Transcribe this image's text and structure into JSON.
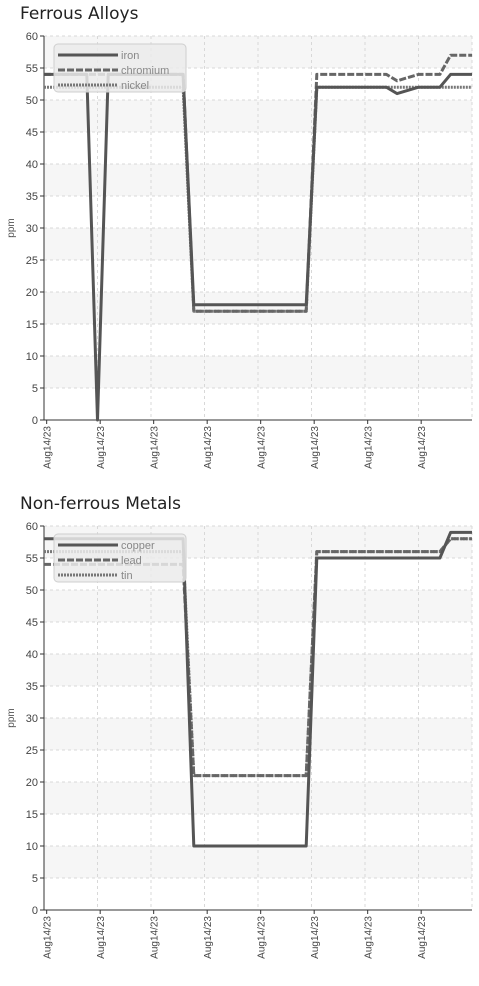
{
  "chart_data": [
    {
      "type": "line",
      "title": "Ferrous Alloys",
      "ylabel": "ppm",
      "ylim": [
        0,
        60
      ],
      "yticks": [
        0,
        5,
        10,
        15,
        20,
        25,
        30,
        35,
        40,
        45,
        50,
        55,
        60
      ],
      "xticks": [
        "Aug14/23",
        "Aug14/23",
        "Aug14/23",
        "Aug14/23",
        "Aug14/23",
        "Aug14/23",
        "Aug14/23",
        "Aug14/23"
      ],
      "x_range": [
        0,
        8
      ],
      "grid": true,
      "legend": "top-left",
      "series": [
        {
          "name": "iron",
          "style": "solid",
          "color": "#555555",
          "x": [
            0,
            0.8,
            1.0,
            1.2,
            2.6,
            2.8,
            4.9,
            5.1,
            6.0,
            6.4,
            6.6,
            7.0,
            7.4,
            7.6,
            8.0
          ],
          "y": [
            54,
            54,
            0,
            54,
            54,
            18,
            18,
            52,
            52,
            52,
            51,
            52,
            52,
            54,
            54
          ]
        },
        {
          "name": "chromium",
          "style": "dashed",
          "color": "#666666",
          "x": [
            0,
            2.6,
            2.8,
            4.9,
            5.1,
            6.0,
            6.4,
            6.6,
            7.0,
            7.4,
            7.6,
            8.0
          ],
          "y": [
            54,
            54,
            17,
            17,
            54,
            54,
            54,
            53,
            54,
            54,
            57,
            57
          ]
        },
        {
          "name": "nickel",
          "style": "dotted",
          "color": "#777777",
          "x": [
            0,
            2.6,
            2.8,
            4.9,
            5.1,
            8.0
          ],
          "y": [
            52,
            52,
            17,
            17,
            52,
            52
          ]
        }
      ]
    },
    {
      "type": "line",
      "title": "Non-ferrous Metals",
      "ylabel": "ppm",
      "ylim": [
        0,
        60
      ],
      "yticks": [
        0,
        5,
        10,
        15,
        20,
        25,
        30,
        35,
        40,
        45,
        50,
        55,
        60
      ],
      "xticks": [
        "Aug14/23",
        "Aug14/23",
        "Aug14/23",
        "Aug14/23",
        "Aug14/23",
        "Aug14/23",
        "Aug14/23",
        "Aug14/23"
      ],
      "x_range": [
        0,
        8
      ],
      "grid": true,
      "legend": "top-left",
      "series": [
        {
          "name": "copper",
          "style": "solid",
          "color": "#555555",
          "x": [
            0,
            2.6,
            2.8,
            4.9,
            5.1,
            7.4,
            7.6,
            8.0
          ],
          "y": [
            58,
            58,
            10,
            10,
            55,
            55,
            59,
            59
          ]
        },
        {
          "name": "lead",
          "style": "dashed",
          "color": "#666666",
          "x": [
            0,
            2.6,
            2.8,
            4.9,
            5.1,
            7.4,
            7.6,
            8.0
          ],
          "y": [
            54,
            54,
            21,
            21,
            56,
            56,
            58,
            58
          ]
        },
        {
          "name": "tin",
          "style": "dotted",
          "color": "#777777",
          "x": [
            0,
            2.6,
            2.8,
            4.9,
            5.1,
            7.4,
            7.6,
            8.0
          ],
          "y": [
            56,
            56,
            21,
            21,
            56,
            56,
            58,
            58
          ]
        }
      ]
    }
  ]
}
